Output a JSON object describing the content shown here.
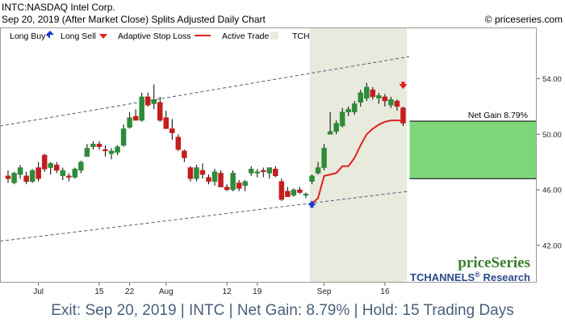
{
  "header": {
    "symbol_line": "INTC:NASDAQ Intel Corp.",
    "date_line": "Sep 20, 2019 (After Market Close)  Splits Adjusted Daily Chart",
    "site": "© priceseries.com"
  },
  "legend": {
    "long_buy": "Long Buy",
    "long_sell": "Long Sell",
    "adaptive_stop": "Adaptive Stop Loss",
    "active_trade": "Active Trade",
    "tchannels": "TCHANNELS"
  },
  "brand": {
    "logo": "priceSeries",
    "tchannels_name": "TCHANNELS",
    "tchannels_reg": "®",
    "tchannels_suffix": " Research"
  },
  "annotation": {
    "net_gain_label": "Net Gain 8.79%"
  },
  "footer": {
    "text": "Exit: Sep 20, 2019 | INTC | Net Gain: 8.79% | Hold: 15 Trading Days"
  },
  "colors": {
    "up_candle": "#2e8b3a",
    "down_candle": "#c41e1e",
    "stop_line": "#e0201c",
    "active_trade_band": "#e8eadd",
    "channel_line": "#4a5f7a",
    "gain_box": "#7ed67a",
    "buy_marker": "#1a3ccc",
    "sell_marker": "#e0201c",
    "logo_green": "#3a7d2c",
    "brand_blue": "#2a4a8a"
  },
  "chart_data": {
    "type": "candlestick",
    "x_tick_labels": [
      "Jul",
      "15",
      "22",
      "Aug",
      "12",
      "19",
      "Sep",
      "16"
    ],
    "x_tick_index": [
      5,
      15,
      20,
      26,
      36,
      41,
      52,
      62
    ],
    "y_ticks": [
      42,
      46,
      50,
      54
    ],
    "ylim": [
      41.0,
      56.3
    ],
    "grid": false,
    "legend_position": "top",
    "candles": [
      {
        "o": 47.0,
        "h": 47.4,
        "l": 46.5,
        "c": 46.8
      },
      {
        "o": 46.5,
        "h": 47.3,
        "l": 46.4,
        "c": 47.2
      },
      {
        "o": 47.1,
        "h": 47.8,
        "l": 46.8,
        "c": 47.6
      },
      {
        "o": 47.0,
        "h": 47.3,
        "l": 46.4,
        "c": 46.6
      },
      {
        "o": 46.6,
        "h": 47.5,
        "l": 46.5,
        "c": 47.4
      },
      {
        "o": 47.6,
        "h": 48.0,
        "l": 46.6,
        "c": 46.8
      },
      {
        "o": 48.5,
        "h": 48.6,
        "l": 47.3,
        "c": 47.5
      },
      {
        "o": 47.6,
        "h": 48.0,
        "l": 47.1,
        "c": 47.9
      },
      {
        "o": 47.8,
        "h": 48.0,
        "l": 47.2,
        "c": 47.4
      },
      {
        "o": 47.0,
        "h": 47.6,
        "l": 46.7,
        "c": 47.4
      },
      {
        "o": 47.0,
        "h": 47.2,
        "l": 46.6,
        "c": 46.9
      },
      {
        "o": 46.9,
        "h": 47.6,
        "l": 46.8,
        "c": 47.5
      },
      {
        "o": 47.4,
        "h": 48.1,
        "l": 47.2,
        "c": 48.0
      },
      {
        "o": 48.4,
        "h": 49.3,
        "l": 48.4,
        "c": 49.0
      },
      {
        "o": 49.1,
        "h": 49.5,
        "l": 48.9,
        "c": 49.3
      },
      {
        "o": 49.3,
        "h": 49.5,
        "l": 48.9,
        "c": 49.1
      },
      {
        "o": 48.9,
        "h": 49.2,
        "l": 48.4,
        "c": 48.8
      },
      {
        "o": 48.6,
        "h": 49.0,
        "l": 48.2,
        "c": 48.8
      },
      {
        "o": 48.7,
        "h": 49.2,
        "l": 48.5,
        "c": 49.1
      },
      {
        "o": 49.2,
        "h": 50.7,
        "l": 49.1,
        "c": 50.4
      },
      {
        "o": 50.5,
        "h": 51.6,
        "l": 50.4,
        "c": 51.2
      },
      {
        "o": 51.3,
        "h": 51.8,
        "l": 51.0,
        "c": 51.0
      },
      {
        "o": 51.0,
        "h": 53.0,
        "l": 50.9,
        "c": 52.7
      },
      {
        "o": 52.7,
        "h": 53.0,
        "l": 52.0,
        "c": 52.1
      },
      {
        "o": 52.2,
        "h": 53.6,
        "l": 51.8,
        "c": 52.5
      },
      {
        "o": 52.3,
        "h": 52.7,
        "l": 50.9,
        "c": 51.0
      },
      {
        "o": 51.2,
        "h": 51.7,
        "l": 50.4,
        "c": 50.4
      },
      {
        "o": 50.4,
        "h": 51.1,
        "l": 49.6,
        "c": 50.1
      },
      {
        "o": 49.8,
        "h": 50.0,
        "l": 48.8,
        "c": 48.9
      },
      {
        "o": 48.8,
        "h": 48.9,
        "l": 48.0,
        "c": 48.3
      },
      {
        "o": 47.6,
        "h": 47.7,
        "l": 46.6,
        "c": 46.8
      },
      {
        "o": 46.8,
        "h": 47.8,
        "l": 46.6,
        "c": 47.6
      },
      {
        "o": 47.4,
        "h": 47.9,
        "l": 46.8,
        "c": 47.1
      },
      {
        "o": 46.9,
        "h": 47.1,
        "l": 46.4,
        "c": 46.6
      },
      {
        "o": 46.6,
        "h": 47.5,
        "l": 46.3,
        "c": 47.3
      },
      {
        "o": 47.2,
        "h": 47.4,
        "l": 46.2,
        "c": 46.2
      },
      {
        "o": 46.2,
        "h": 46.4,
        "l": 45.9,
        "c": 46.0
      },
      {
        "o": 46.0,
        "h": 47.4,
        "l": 45.9,
        "c": 47.2
      },
      {
        "o": 46.5,
        "h": 46.7,
        "l": 45.9,
        "c": 46.1
      },
      {
        "o": 46.3,
        "h": 46.7,
        "l": 45.9,
        "c": 46.6
      },
      {
        "o": 47.2,
        "h": 47.7,
        "l": 47.0,
        "c": 47.5
      },
      {
        "o": 47.2,
        "h": 47.5,
        "l": 46.9,
        "c": 47.3
      },
      {
        "o": 47.4,
        "h": 47.6,
        "l": 46.9,
        "c": 47.3
      },
      {
        "o": 47.2,
        "h": 47.6,
        "l": 46.8,
        "c": 47.6
      },
      {
        "o": 47.5,
        "h": 47.7,
        "l": 46.9,
        "c": 47.0
      },
      {
        "o": 46.6,
        "h": 46.8,
        "l": 45.2,
        "c": 45.3
      },
      {
        "o": 45.9,
        "h": 46.2,
        "l": 45.5,
        "c": 45.5
      },
      {
        "o": 45.6,
        "h": 46.1,
        "l": 45.5,
        "c": 46.0
      },
      {
        "o": 46.0,
        "h": 46.2,
        "l": 45.7,
        "c": 45.8
      },
      {
        "o": 45.6,
        "h": 45.8,
        "l": 45.4,
        "c": 45.7
      },
      {
        "o": 46.6,
        "h": 47.1,
        "l": 46.4,
        "c": 47.0
      },
      {
        "o": 47.2,
        "h": 48.0,
        "l": 47.1,
        "c": 47.6
      },
      {
        "o": 47.6,
        "h": 49.3,
        "l": 47.4,
        "c": 49.0
      },
      {
        "o": 50.0,
        "h": 51.6,
        "l": 50.0,
        "c": 50.2
      },
      {
        "o": 50.2,
        "h": 51.0,
        "l": 50.0,
        "c": 50.8
      },
      {
        "o": 50.6,
        "h": 51.9,
        "l": 50.5,
        "c": 51.6
      },
      {
        "o": 51.6,
        "h": 52.0,
        "l": 51.3,
        "c": 51.8
      },
      {
        "o": 51.6,
        "h": 52.4,
        "l": 51.4,
        "c": 52.2
      },
      {
        "o": 52.3,
        "h": 53.2,
        "l": 52.0,
        "c": 53.0
      },
      {
        "o": 52.6,
        "h": 53.7,
        "l": 52.4,
        "c": 53.4
      },
      {
        "o": 53.2,
        "h": 53.4,
        "l": 52.5,
        "c": 52.7
      },
      {
        "o": 52.6,
        "h": 53.0,
        "l": 52.2,
        "c": 52.8
      },
      {
        "o": 52.7,
        "h": 52.9,
        "l": 52.0,
        "c": 52.4
      },
      {
        "o": 52.1,
        "h": 52.7,
        "l": 51.9,
        "c": 52.5
      },
      {
        "o": 52.4,
        "h": 52.5,
        "l": 51.7,
        "c": 52.0
      },
      {
        "o": 51.9,
        "h": 52.0,
        "l": 50.6,
        "c": 50.8
      }
    ],
    "adaptive_stop": {
      "start_index": 50,
      "values": [
        45.0,
        45.4,
        47.0,
        47.1,
        47.2,
        47.7,
        47.7,
        48.3,
        49.2,
        50.0,
        50.4,
        50.7,
        50.9,
        51.0,
        51.0,
        51.0
      ]
    },
    "active_trade": {
      "start_index": 50,
      "end_index": 65
    },
    "entry": {
      "index": 50,
      "price": 45.0
    },
    "exit": {
      "index": 65,
      "price": 53.5
    },
    "tchannel_upper": {
      "start": {
        "index": 0,
        "price": 50.6
      },
      "end": {
        "index": 66,
        "price": 55.6
      }
    },
    "tchannel_lower": {
      "start": {
        "index": 0,
        "price": 42.3
      },
      "end": {
        "index": 66,
        "price": 45.9
      }
    },
    "gain_box": {
      "low": 46.8,
      "high": 50.95
    }
  }
}
